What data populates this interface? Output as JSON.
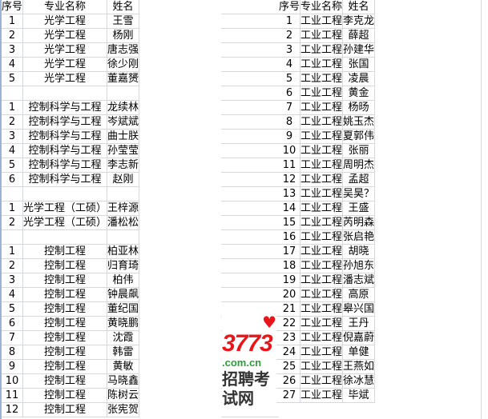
{
  "headers": {
    "no": "序号",
    "major": "专业名称",
    "name": "姓名"
  },
  "left_rows": [
    [
      "1",
      "光学工程",
      "王雪"
    ],
    [
      "2",
      "光学工程",
      "杨刚"
    ],
    [
      "3",
      "光学工程",
      "唐志强"
    ],
    [
      "4",
      "光学工程",
      "徐少刚"
    ],
    [
      "5",
      "光学工程",
      "董嘉赟"
    ],
    [
      "",
      "",
      ""
    ],
    [
      "1",
      "控制科学与工程",
      "龙续林"
    ],
    [
      "2",
      "控制科学与工程",
      "岑斌斌"
    ],
    [
      "3",
      "控制科学与工程",
      "曲士朕"
    ],
    [
      "4",
      "控制科学与工程",
      "孙莹莹"
    ],
    [
      "5",
      "控制科学与工程",
      "李志新"
    ],
    [
      "6",
      "控制科学与工程",
      "赵刚"
    ],
    [
      "",
      "",
      ""
    ],
    [
      "1",
      "光学工程（工硕）",
      "王梓源"
    ],
    [
      "2",
      "光学工程（工硕）",
      "潘松松"
    ],
    [
      "",
      "",
      ""
    ],
    [
      "1",
      "控制工程",
      "柏亚林"
    ],
    [
      "2",
      "控制工程",
      "归育琦"
    ],
    [
      "3",
      "控制工程",
      "柏伟"
    ],
    [
      "4",
      "控制工程",
      "钟晨飙"
    ],
    [
      "5",
      "控制工程",
      "董纪国"
    ],
    [
      "6",
      "控制工程",
      "黄晓鹏"
    ],
    [
      "7",
      "控制工程",
      "沈霞"
    ],
    [
      "8",
      "控制工程",
      "韩雷"
    ],
    [
      "9",
      "控制工程",
      "黄敏"
    ],
    [
      "10",
      "控制工程",
      "马晓鑫"
    ],
    [
      "11",
      "控制工程",
      "陈树云"
    ],
    [
      "12",
      "控制工程",
      "张宪贺"
    ]
  ],
  "right_rows": [
    [
      "1",
      "工业工程",
      "李克龙"
    ],
    [
      "2",
      "工业工程",
      "薛超"
    ],
    [
      "3",
      "工业工程",
      "孙建华"
    ],
    [
      "4",
      "工业工程",
      "张国"
    ],
    [
      "5",
      "工业工程",
      "凌晨"
    ],
    [
      "6",
      "工业工程",
      "黄金"
    ],
    [
      "7",
      "工业工程",
      "杨旸"
    ],
    [
      "8",
      "工业工程",
      "姚玉杰"
    ],
    [
      "9",
      "工业工程",
      "夏郭伟"
    ],
    [
      "10",
      "工业工程",
      "张丽"
    ],
    [
      "11",
      "工业工程",
      "周明杰"
    ],
    [
      "12",
      "工业工程",
      "孟超"
    ],
    [
      "13",
      "工业工程",
      "吴昊？"
    ],
    [
      "14",
      "工业工程",
      "王盛"
    ],
    [
      "15",
      "工业工程",
      "芮明森"
    ],
    [
      "16",
      "工业工程",
      "张启艳"
    ],
    [
      "17",
      "工业工程",
      "胡晓"
    ],
    [
      "18",
      "工业工程",
      "孙旭东"
    ],
    [
      "19",
      "工业工程",
      "潘志斌"
    ],
    [
      "20",
      "工业工程",
      "高原"
    ],
    [
      "21",
      "工业工程",
      "皋兴国"
    ],
    [
      "22",
      "工业工程",
      "王丹"
    ],
    [
      "23",
      "工业工程",
      "倪嘉蔚"
    ],
    [
      "24",
      "工业工程",
      "单健"
    ],
    [
      "25",
      "工业工程",
      "王燕如"
    ],
    [
      "26",
      "工业工程",
      "徐冰慧"
    ],
    [
      "27",
      "工业工程",
      "毕斌"
    ]
  ],
  "watermark": {
    "brand": "3773",
    "domain": ".com.cn",
    "site": "招聘考试网"
  }
}
